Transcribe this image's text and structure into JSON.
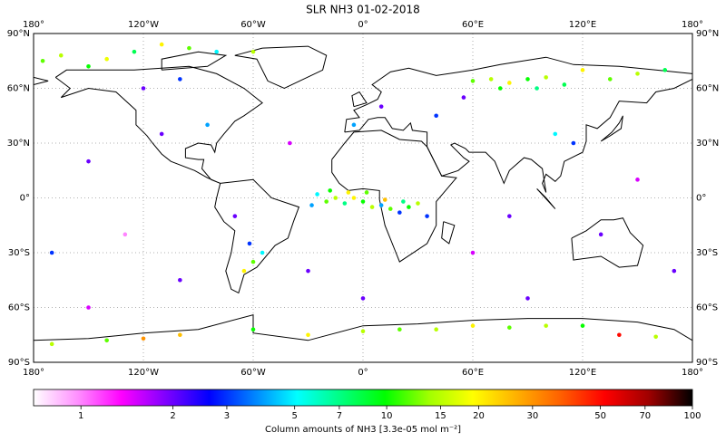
{
  "chart_data": {
    "type": "scatter",
    "title": "SLR NH3 01-02-2018",
    "xlim": [
      -180,
      180
    ],
    "ylim": [
      -90,
      90
    ],
    "xticks": [
      {
        "value": -180,
        "label": "180°"
      },
      {
        "value": -120,
        "label": "120°W"
      },
      {
        "value": -60,
        "label": "60°W"
      },
      {
        "value": 0,
        "label": "0°"
      },
      {
        "value": 60,
        "label": "60°E"
      },
      {
        "value": 120,
        "label": "120°E"
      },
      {
        "value": 180,
        "label": "180°"
      }
    ],
    "yticks": [
      {
        "value": 90,
        "label": "90°N"
      },
      {
        "value": 60,
        "label": "60°N"
      },
      {
        "value": 30,
        "label": "30°N"
      },
      {
        "value": 0,
        "label": "0°"
      },
      {
        "value": -30,
        "label": "30°S"
      },
      {
        "value": -60,
        "label": "60°S"
      },
      {
        "value": -90,
        "label": "90°S"
      }
    ],
    "grid": true,
    "x": [
      -25,
      -20,
      -15,
      -10,
      -5,
      0,
      5,
      10,
      15,
      20,
      25,
      30,
      -18,
      -8,
      2,
      12,
      35,
      -28,
      22,
      60,
      70,
      80,
      90,
      100,
      110,
      120,
      135,
      150,
      165,
      75,
      95,
      55,
      105,
      115,
      -175,
      -165,
      -150,
      -140,
      -125,
      -110,
      -95,
      -80,
      -60,
      -100,
      -120,
      -85,
      -110,
      -60,
      -65,
      -55,
      -62,
      -70,
      -170,
      -140,
      -100,
      -60,
      -30,
      0,
      20,
      40,
      60,
      80,
      100,
      120,
      140,
      160,
      -120,
      -150,
      -130,
      -100,
      -40,
      -30,
      60,
      80,
      150,
      170,
      -170,
      130,
      0,
      -150,
      90,
      40,
      10,
      -5
    ],
    "y": [
      2,
      -2,
      0,
      -3,
      0,
      -2,
      -5,
      -4,
      -6,
      -8,
      -5,
      -3,
      4,
      3,
      3,
      -1,
      -10,
      -4,
      -2,
      64,
      65,
      63,
      65,
      66,
      62,
      70,
      65,
      68,
      70,
      60,
      60,
      55,
      35,
      30,
      75,
      78,
      72,
      76,
      80,
      84,
      82,
      80,
      80,
      65,
      60,
      40,
      35,
      -35,
      -40,
      -30,
      -25,
      -10,
      -80,
      -78,
      -75,
      -72,
      -75,
      -73,
      -72,
      -72,
      -70,
      -71,
      -70,
      -70,
      -75,
      -76,
      -77,
      20,
      -20,
      -45,
      30,
      -40,
      -30,
      -10,
      10,
      -40,
      -30,
      -20,
      -55,
      -60,
      -55,
      45,
      50,
      40
    ],
    "values": [
      5,
      12,
      15,
      7,
      20,
      10,
      15,
      4,
      12,
      3,
      10,
      15,
      10,
      20,
      12,
      25,
      3,
      4,
      7,
      12,
      15,
      20,
      10,
      15,
      8,
      20,
      12,
      15,
      8,
      10,
      7,
      2,
      5,
      3,
      12,
      15,
      10,
      18,
      8,
      20,
      12,
      5,
      15,
      3,
      2,
      4,
      2,
      12,
      20,
      5,
      3,
      2,
      15,
      12,
      25,
      10,
      20,
      15,
      12,
      15,
      20,
      12,
      15,
      10,
      50,
      15,
      30,
      2,
      1,
      2,
      1.5,
      2,
      1.5,
      2,
      1.5,
      2,
      3,
      2,
      2,
      1.5,
      2,
      3,
      2,
      4
    ],
    "log_scale": true,
    "clim": [
      0.7,
      100
    ],
    "colormap": [
      "#ffffff",
      "#ff90ff",
      "#ff00ff",
      "#8000ff",
      "#0000ff",
      "#0080ff",
      "#00ffff",
      "#00ff80",
      "#00ff00",
      "#a0ff00",
      "#ffff00",
      "#ffb000",
      "#ff6000",
      "#ff0000",
      "#a00000",
      "#000000"
    ],
    "colorbar_ticks": [
      1,
      2,
      3,
      5,
      7,
      10,
      15,
      20,
      30,
      50,
      70,
      100
    ],
    "colorbar_label": "Column amounts of NH3 [3.3e-05 mol m⁻²]"
  }
}
